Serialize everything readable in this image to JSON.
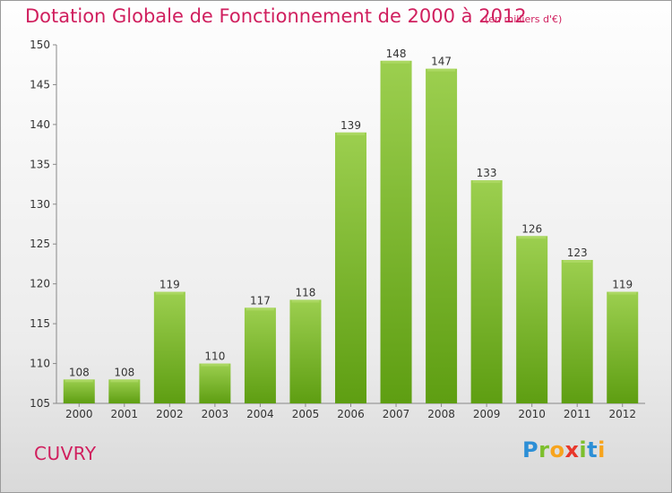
{
  "header": {
    "title": "Dotation Globale de Fonctionnement de 2000 à 2012",
    "unit": "(en milliers d'€)"
  },
  "footer": {
    "place": "CUVRY",
    "logo": "Proxiti"
  },
  "chart_data": {
    "type": "bar",
    "title": "Dotation Globale de Fonctionnement de 2000 à 2012",
    "subtitle": "(en milliers d'€)",
    "xlabel": "",
    "ylabel": "",
    "categories": [
      "2000",
      "2001",
      "2002",
      "2003",
      "2004",
      "2005",
      "2006",
      "2007",
      "2008",
      "2009",
      "2010",
      "2011",
      "2012"
    ],
    "values": [
      108,
      108,
      119,
      110,
      117,
      118,
      139,
      148,
      147,
      133,
      126,
      123,
      119
    ],
    "ylim": [
      105,
      150
    ],
    "yticks": [
      105,
      110,
      115,
      120,
      125,
      130,
      135,
      140,
      145,
      150
    ],
    "grid": false,
    "legend": "none",
    "colors": {
      "bar_top": "#9ccf4f",
      "bar_bottom": "#5e9e12",
      "label": "#333333",
      "title": "#d01f5e"
    }
  }
}
